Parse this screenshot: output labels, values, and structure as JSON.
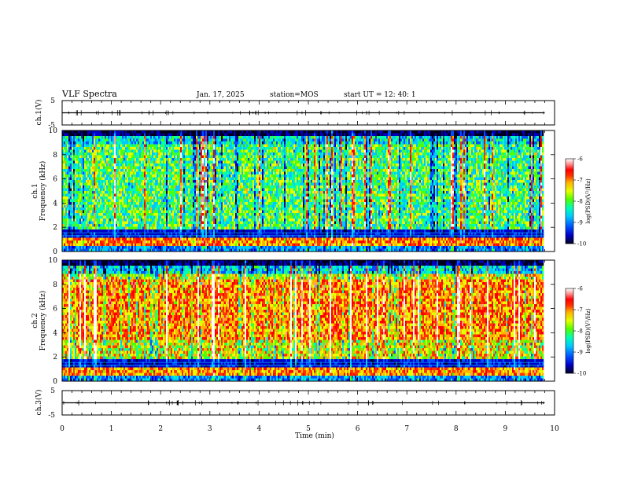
{
  "header": {
    "title": "VLF Spectra",
    "date": "Jan. 17, 2025",
    "station": "station=MOS",
    "start": "start UT =  12: 40: 1"
  },
  "chart_data": [
    {
      "type": "line",
      "name": "ch1-waveform",
      "ylabel": "ch.1(V)",
      "ylim": [
        -5,
        5
      ],
      "yticks": [
        "5",
        "-5"
      ],
      "xlim": [
        0,
        10
      ],
      "baseline": 0
    },
    {
      "type": "heatmap",
      "name": "ch1-spectrogram",
      "ylabel": "ch.1\nFrequency (kHz)",
      "ylim": [
        0,
        10
      ],
      "yticks": [
        "0",
        "2",
        "4",
        "6",
        "8",
        "10"
      ],
      "xlim": [
        0,
        10
      ],
      "data_end_min": 9.8,
      "colorbar": {
        "label": "log(PSD)(V²/Hz)",
        "range": [
          -10,
          -6
        ],
        "ticks": [
          "-6",
          "-7",
          "-8",
          "-9",
          "-10"
        ]
      },
      "intensity": "mixed; green-yellow above ~1.8 kHz with frequent vertical red spikes; dark blue band 1.2–1.8 kHz; yellow-orange band below ~1 kHz; black above ~9.4 kHz"
    },
    {
      "type": "heatmap",
      "name": "ch2-spectrogram",
      "ylabel": "ch.2\nFrequency (kHz)",
      "ylim": [
        0,
        10
      ],
      "yticks": [
        "0",
        "2",
        "4",
        "6",
        "8",
        "10"
      ],
      "xlim": [
        0,
        10
      ],
      "data_end_min": 9.8,
      "colorbar": {
        "label": "log(PSD)(V²/Hz)",
        "range": [
          -10,
          -6
        ],
        "ticks": [
          "-6",
          "-7",
          "-8",
          "-9",
          "-10"
        ]
      },
      "intensity": "higher; orange-red dominant from ~4 to 8 kHz; dark band 1.2–1.8 kHz; black above ~9.5 kHz"
    },
    {
      "type": "line",
      "name": "ch3-waveform",
      "ylabel": "ch.3(V)",
      "ylim": [
        -5,
        5
      ],
      "yticks": [
        "5",
        "-5"
      ],
      "xlim": [
        0,
        10
      ],
      "baseline": 0
    }
  ],
  "xaxis": {
    "label": "Time (min)",
    "ticks": [
      "0",
      "1",
      "2",
      "3",
      "4",
      "5",
      "6",
      "7",
      "8",
      "9",
      "10"
    ]
  },
  "colors": {
    "colormap": [
      "#00001e",
      "#0000c8",
      "#0050ff",
      "#00c8ff",
      "#00ffb4",
      "#50ff00",
      "#e6ff00",
      "#ffb400",
      "#ff3200",
      "#ff0000",
      "#ff9696",
      "#ffffff"
    ]
  }
}
